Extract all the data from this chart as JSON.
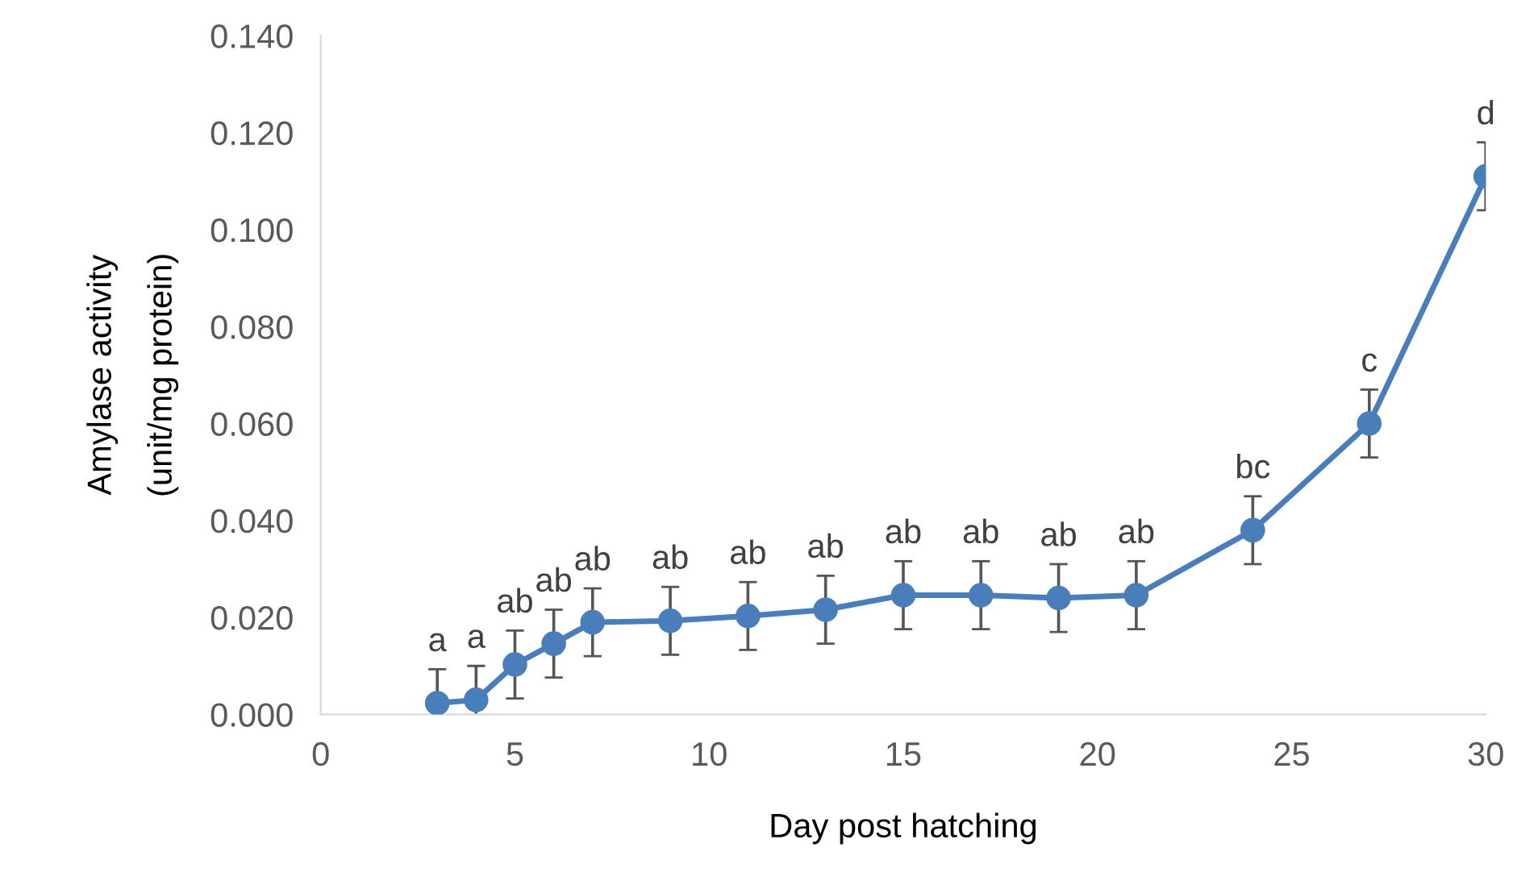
{
  "chart_data": {
    "type": "line",
    "xlabel": "Day post hatching",
    "ylabel": "Amylase activity\n(unit/mg protein)",
    "x": [
      3,
      4,
      5,
      6,
      7,
      9,
      11,
      13,
      15,
      17,
      19,
      21,
      24,
      27,
      30
    ],
    "series": [
      {
        "color": "#4a7ebb",
        "values": [
          0.0023,
          0.003,
          0.0103,
          0.0146,
          0.019,
          0.0193,
          0.0203,
          0.0216,
          0.0246,
          0.0246,
          0.024,
          0.0246,
          0.038,
          0.06,
          0.111
        ],
        "errors": [
          0.007,
          0.007,
          0.007,
          0.007,
          0.007,
          0.007,
          0.007,
          0.007,
          0.007,
          0.007,
          0.007,
          0.007,
          0.007,
          0.007,
          0.007
        ]
      }
    ],
    "marker": "circle",
    "line_style": "solid",
    "grid": false,
    "legend": false,
    "xlim": [
      0,
      30
    ],
    "xticks": [
      0,
      5,
      10,
      15,
      20,
      25,
      30
    ],
    "ylim": [
      0,
      0.14
    ],
    "yticks": [
      {
        "value": 0,
        "label": "0.000"
      },
      {
        "value": 0.02,
        "label": "0.020"
      },
      {
        "value": 0.04,
        "label": "0.040"
      },
      {
        "value": 0.06,
        "label": "0.060"
      },
      {
        "value": 0.08,
        "label": "0.080"
      },
      {
        "value": 0.1,
        "label": "0.100"
      },
      {
        "value": 0.12,
        "label": "0.120"
      },
      {
        "value": 0.14,
        "label": "0.140"
      }
    ],
    "annotations": [
      {
        "text": "a",
        "x": 3,
        "y": 0.0093
      },
      {
        "text": "a",
        "x": 4,
        "y": 0.01
      },
      {
        "text": "ab",
        "x": 5,
        "y": 0.0173
      },
      {
        "text": "ab",
        "x": 6,
        "y": 0.0216
      },
      {
        "text": "ab",
        "x": 7,
        "y": 0.026
      },
      {
        "text": "ab",
        "x": 9,
        "y": 0.0263
      },
      {
        "text": "ab",
        "x": 11,
        "y": 0.0273
      },
      {
        "text": "ab",
        "x": 13,
        "y": 0.0286
      },
      {
        "text": "ab",
        "x": 15,
        "y": 0.0316
      },
      {
        "text": "ab",
        "x": 17,
        "y": 0.0316
      },
      {
        "text": "ab",
        "x": 19,
        "y": 0.031
      },
      {
        "text": "ab",
        "x": 21,
        "y": 0.0316
      },
      {
        "text": "bc",
        "x": 24,
        "y": 0.045
      },
      {
        "text": "c",
        "x": 27,
        "y": 0.067
      },
      {
        "text": "d",
        "x": 30,
        "y": 0.118
      }
    ]
  }
}
